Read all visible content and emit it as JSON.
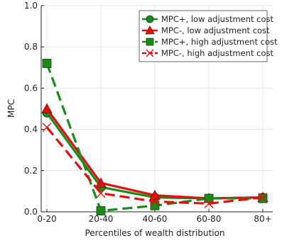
{
  "chart_data": {
    "type": "line",
    "title": "",
    "xlabel": "Percentiles of wealth distribution",
    "ylabel": "MPC",
    "categories": [
      "0-20",
      "20-40",
      "40-60",
      "60-80",
      "80+"
    ],
    "ylim": [
      0,
      1.0
    ],
    "yticks": [
      "0.0",
      "0.2",
      "0.4",
      "0.6",
      "0.8",
      "1.0"
    ],
    "grid": true,
    "legend_position": "top-right",
    "series": [
      {
        "name": "MPC+, low adjustment cost",
        "values": [
          0.48,
          0.12,
          0.07,
          0.065,
          0.07
        ],
        "color": "#1a8a1a",
        "marker": "circle",
        "dash": "solid"
      },
      {
        "name": "MPC-, low adjustment cost",
        "values": [
          0.5,
          0.14,
          0.08,
          0.065,
          0.07
        ],
        "color": "#e01010",
        "marker": "triangle",
        "dash": "solid"
      },
      {
        "name": "MPC+, high adjustment cost",
        "values": [
          0.72,
          0.005,
          0.03,
          0.065,
          0.065
        ],
        "color": "#1a8a1a",
        "marker": "square",
        "dash": "dashed"
      },
      {
        "name": "MPC-, high adjustment cost",
        "values": [
          0.41,
          0.09,
          0.05,
          0.04,
          0.07
        ],
        "color": "#e01010",
        "marker": "x",
        "dash": "dashed"
      }
    ]
  }
}
